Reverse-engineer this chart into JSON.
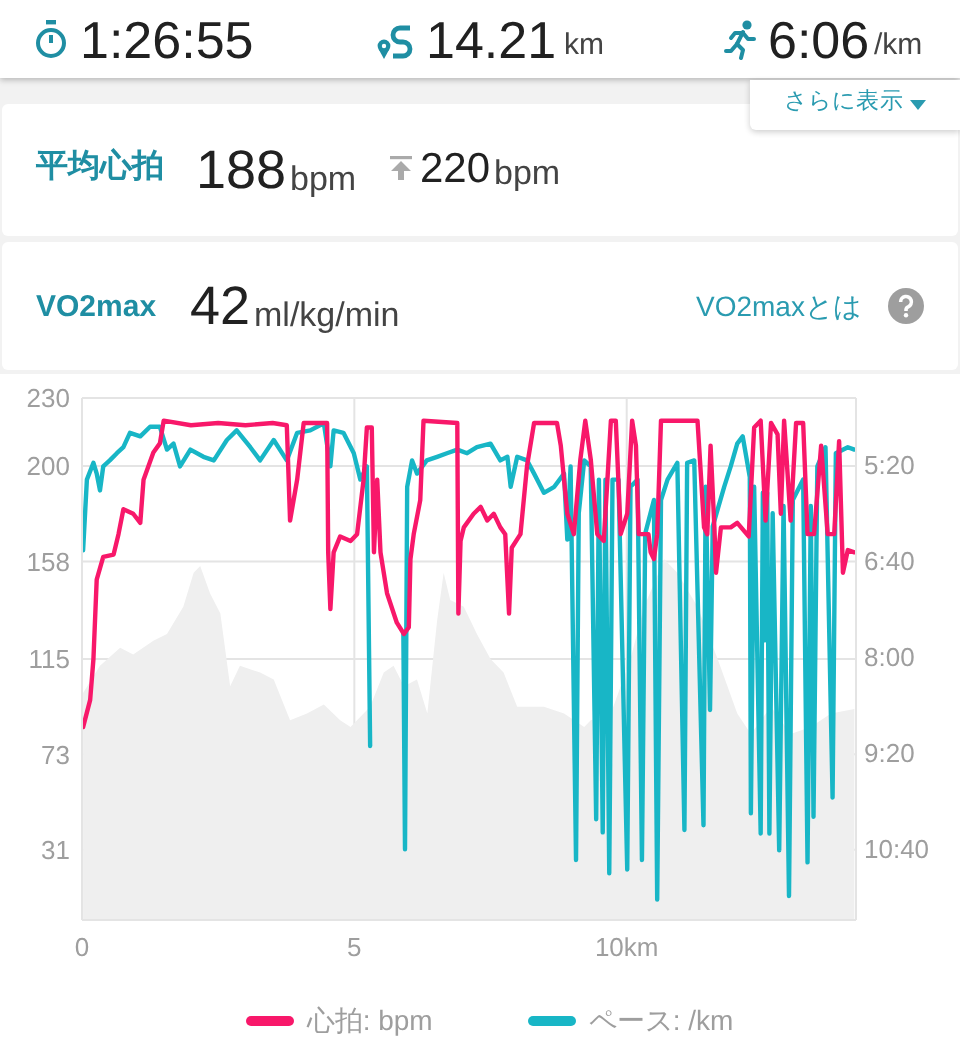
{
  "chart_data": [
    {
      "type": "other",
      "annotations": [
        "1:26:55",
        "14.21",
        "km",
        "6:06",
        "/km",
        "さらに表示",
        "平均心拍",
        "188",
        "bpm",
        "220",
        "bpm",
        "VO2max",
        "42",
        "ml/kg/min",
        "VO2maxとは"
      ]
    },
    {
      "type": "line",
      "xlim": [
        0,
        14.21
      ],
      "xticks": [
        0,
        5,
        {
          "value": 10,
          "label": "10km"
        }
      ],
      "ylim": [
        0,
        230
      ],
      "yticks": [
        230,
        200,
        158,
        115,
        73,
        31
      ],
      "y2lim": [
        699,
        264
      ],
      "y2ticks": [
        {
          "value": 320,
          "label": "5:20"
        },
        {
          "value": 400,
          "label": "6:40"
        },
        {
          "value": 480,
          "label": "8:00"
        },
        {
          "value": 560,
          "label": "9:20"
        },
        {
          "value": 640,
          "label": "10:40"
        }
      ],
      "grid": true,
      "legend": "bottom",
      "marker": "none",
      "series": [
        {
          "type": "area",
          "color": "#efefef",
          "x": [
            0.02,
            0.33,
            0.7,
            0.94,
            1.31,
            1.56,
            1.86,
            2.05,
            2.17,
            2.35,
            2.54,
            2.72,
            2.9,
            3.27,
            3.52,
            3.82,
            4.13,
            4.44,
            4.74,
            4.93,
            5.29,
            5.54,
            5.72,
            5.91,
            6.15,
            6.34,
            6.52,
            6.64,
            6.76,
            7.01,
            7.25,
            7.5,
            7.74,
            7.99,
            8.48,
            8.85,
            9.22,
            9.34,
            9.71,
            10.07,
            10.32,
            10.69,
            10.93,
            11.3,
            11.67,
            12.03,
            12.28,
            12.65,
            13.01,
            13.38,
            13.75,
            14.18
          ],
          "values": [
            100,
            112,
            120,
            117,
            123,
            126,
            138,
            153,
            156,
            144,
            135,
            103,
            112,
            109,
            106,
            88,
            91,
            95,
            88,
            85,
            94,
            109,
            112,
            103,
            106,
            91,
            132,
            153,
            141,
            138,
            126,
            115,
            109,
            94,
            94,
            91,
            85,
            88,
            91,
            115,
            138,
            159,
            153,
            138,
            115,
            91,
            82,
            94,
            82,
            85,
            91,
            93
          ]
        },
        {
          "type": "line",
          "name": "ペース: /km",
          "color": "#18b6c6",
          "axis": "y2",
          "x": [
            0.02,
            0.09,
            0.21,
            0.27,
            0.33,
            0.39,
            0.51,
            0.64,
            0.76,
            0.88,
            1.07,
            1.25,
            1.43,
            1.56,
            1.68,
            1.8,
            1.99,
            2.23,
            2.42,
            2.66,
            2.84,
            3.09,
            3.27,
            3.52,
            3.76,
            3.95,
            4.19,
            4.44,
            4.56,
            4.62,
            4.8,
            4.99,
            5.11,
            5.23,
            5.29,
            5.33,
            5.9,
            5.93,
            5.97,
            6.06,
            6.15,
            6.33,
            6.52,
            6.7,
            6.89,
            7.07,
            7.25,
            7.5,
            7.68,
            7.81,
            7.87,
            7.99,
            8.17,
            8.3,
            8.48,
            8.67,
            8.85,
            8.91,
            8.97,
            9.07,
            9.12,
            9.22,
            9.34,
            9.44,
            9.49,
            9.56,
            9.61,
            9.68,
            9.74,
            9.85,
            10.01,
            10.07,
            10.2,
            10.28,
            10.34,
            10.5,
            10.56,
            10.63,
            10.75,
            10.93,
            11.06,
            11.11,
            11.24,
            11.41,
            11.45,
            11.53,
            11.58,
            11.79,
            11.91,
            12.03,
            12.13,
            12.26,
            12.28,
            12.34,
            12.46,
            12.5,
            12.54,
            12.58,
            12.62,
            12.68,
            12.8,
            12.88,
            12.98,
            13.05,
            13.24,
            13.32,
            13.38,
            13.43,
            13.5,
            13.65,
            13.78,
            13.84,
            14.06,
            14.18
          ],
          "values": [
            391,
            332,
            318,
            327,
            341,
            321,
            316,
            310,
            305,
            293,
            296,
            288,
            288,
            307,
            302,
            321,
            307,
            313,
            316,
            299,
            291,
            305,
            316,
            299,
            316,
            293,
            291,
            285,
            321,
            291,
            293,
            310,
            332,
            321,
            554,
            null,
            460,
            640,
            338,
            316,
            327,
            316,
            313,
            310,
            307,
            310,
            305,
            302,
            316,
            313,
            338,
            313,
            316,
            327,
            343,
            338,
            327,
            382,
            321,
            649,
            360,
            316,
            321,
            615,
            332,
            626,
            332,
            660,
            332,
            332,
            657,
            338,
            332,
            649,
            377,
            349,
            682,
            349,
            332,
            318,
            624,
            318,
            316,
            620,
            338,
            524,
            371,
            338,
            321,
            302,
            296,
            330,
            610,
            338,
            627,
            343,
            466,
            343,
            627,
            360,
            641,
            354,
            679,
            349,
            332,
            651,
            354,
            613,
            321,
            305,
            597,
            310,
            305,
            307
          ]
        },
        {
          "type": "line",
          "name": "心拍: bpm",
          "color": "#f8186a",
          "x": [
            0.02,
            0.15,
            0.21,
            0.27,
            0.39,
            0.58,
            0.67,
            0.76,
            0.94,
            1.07,
            1.13,
            1.31,
            1.43,
            1.5,
            2.0,
            2.5,
            3.0,
            3.5,
            3.76,
            3.82,
            3.95,
            4.07,
            4.5,
            4.52,
            4.56,
            4.62,
            4.74,
            4.93,
            5.05,
            5.17,
            5.23,
            5.32,
            5.36,
            5.42,
            5.48,
            5.6,
            5.78,
            5.91,
            6.0,
            6.03,
            6.09,
            6.21,
            6.27,
            6.89,
            6.91,
            6.95,
            7.01,
            7.19,
            7.32,
            7.44,
            7.56,
            7.68,
            7.77,
            7.84,
            7.89,
            8.05,
            8.17,
            8.3,
            8.72,
            8.79,
            8.91,
            9.03,
            9.15,
            9.24,
            9.34,
            9.46,
            9.58,
            9.71,
            9.8,
            9.89,
            10.01,
            10.1,
            10.17,
            10.22,
            10.4,
            10.44,
            10.5,
            10.56,
            10.63,
            11.18,
            11.3,
            11.36,
            11.42,
            11.48,
            11.54,
            11.61,
            11.64,
            11.73,
            11.91,
            12.03,
            12.24,
            12.34,
            12.46,
            12.55,
            12.65,
            12.77,
            12.83,
            12.89,
            13.01,
            13.11,
            13.24,
            13.32,
            13.44,
            13.57,
            13.69,
            13.81,
            13.9,
            13.97,
            14.06,
            14.18
          ],
          "values": [
            85,
            97,
            115,
            150,
            160,
            161,
            170,
            181,
            179,
            175,
            194,
            206,
            210,
            220,
            218,
            219,
            218,
            219,
            218,
            176,
            194,
            219,
            219,
            162,
            137,
            162,
            169,
            167,
            170,
            194,
            217,
            217,
            162,
            194,
            162,
            144,
            131,
            126,
            129,
            159,
            170,
            185,
            220,
            219,
            135,
            167,
            173,
            179,
            182,
            176,
            179,
            173,
            170,
            135,
            164,
            170,
            200,
            219,
            219,
            209,
            179,
            170,
            203,
            220,
            203,
            170,
            167,
            220,
            220,
            170,
            179,
            220,
            209,
            170,
            170,
            162,
            159,
            170,
            220,
            220,
            220,
            197,
            173,
            170,
            209,
            173,
            153,
            173,
            173,
            175,
            169,
            217,
            220,
            176,
            219,
            214,
            179,
            220,
            176,
            219,
            219,
            170,
            170,
            209,
            170,
            170,
            211,
            153,
            163,
            162
          ]
        }
      ]
    }
  ]
}
